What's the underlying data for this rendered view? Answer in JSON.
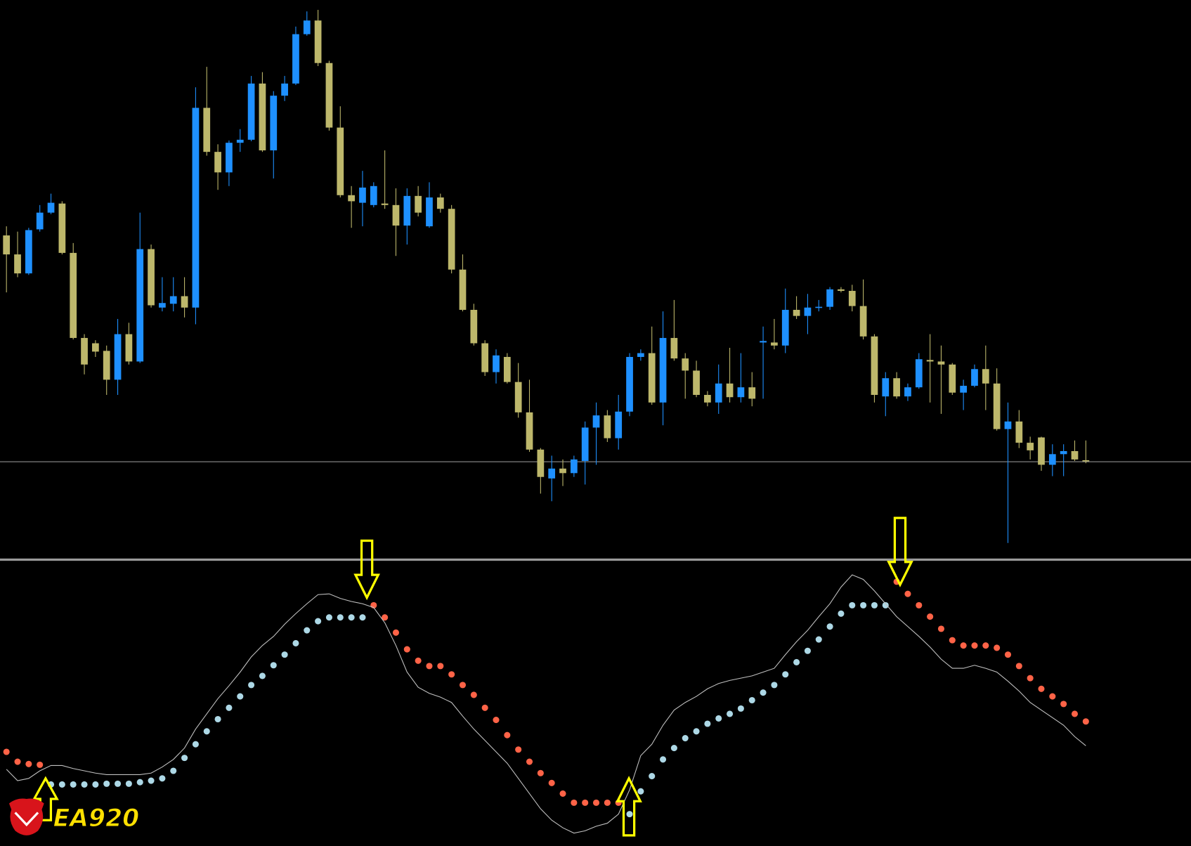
{
  "logo": "EA920",
  "chart_data": [
    {
      "type": "candlestick",
      "up_color": "#1e90ff",
      "down_color": "#bdb76b",
      "ylim": [
        0,
        740
      ],
      "hline": 132,
      "hline_color": "#a0a0a0",
      "open": [
        430,
        405,
        380,
        438,
        460,
        472,
        407,
        295,
        288,
        278,
        240,
        300,
        264,
        412,
        335,
        340,
        350,
        335,
        598,
        540,
        513,
        552,
        556,
        630,
        542,
        614,
        630,
        695,
        713,
        657,
        572,
        483,
        473,
        470,
        472,
        470,
        443,
        482,
        442,
        480,
        465,
        385,
        332,
        288,
        250,
        270,
        237,
        197,
        148,
        110,
        123,
        117,
        133,
        177,
        193,
        163,
        198,
        270,
        275,
        210,
        295,
        268,
        252,
        220,
        210,
        235,
        217,
        230,
        289,
        289,
        285,
        332,
        324,
        335,
        336,
        359,
        357,
        337,
        297,
        218,
        242,
        218,
        230,
        266,
        264,
        260,
        223,
        232,
        254,
        235,
        175,
        185,
        157,
        164,
        128,
        142,
        146,
        134
      ],
      "high": [
        442,
        435,
        440,
        470,
        485,
        475,
        420,
        300,
        292,
        285,
        320,
        315,
        460,
        418,
        375,
        375,
        375,
        625,
        652,
        550,
        555,
        570,
        640,
        645,
        620,
        640,
        705,
        725,
        727,
        660,
        600,
        495,
        515,
        500,
        542,
        492,
        492,
        495,
        500,
        485,
        470,
        405,
        340,
        292,
        280,
        275,
        262,
        240,
        150,
        140,
        135,
        140,
        185,
        210,
        200,
        220,
        275,
        280,
        310,
        330,
        345,
        275,
        265,
        225,
        260,
        282,
        275,
        250,
        310,
        320,
        360,
        350,
        353,
        345,
        362,
        362,
        365,
        372,
        300,
        250,
        250,
        235,
        275,
        300,
        285,
        262,
        240,
        260,
        285,
        255,
        210,
        200,
        165,
        165,
        155,
        155,
        160,
        160
      ],
      "low": [
        355,
        375,
        378,
        435,
        458,
        405,
        293,
        247,
        270,
        220,
        220,
        260,
        262,
        335,
        330,
        330,
        322,
        313,
        535,
        490,
        495,
        540,
        554,
        540,
        505,
        607,
        628,
        693,
        653,
        568,
        480,
        440,
        442,
        467,
        465,
        403,
        418,
        455,
        440,
        460,
        380,
        330,
        285,
        245,
        235,
        235,
        190,
        145,
        90,
        80,
        100,
        112,
        102,
        128,
        158,
        148,
        192,
        265,
        207,
        180,
        265,
        215,
        217,
        205,
        195,
        210,
        210,
        205,
        215,
        280,
        275,
        320,
        300,
        330,
        332,
        355,
        330,
        293,
        210,
        192,
        215,
        212,
        228,
        210,
        195,
        220,
        200,
        230,
        200,
        173,
        25,
        150,
        135,
        120,
        113,
        113,
        133,
        130
      ],
      "close": [
        405,
        380,
        437,
        460,
        473,
        407,
        295,
        260,
        277,
        240,
        300,
        264,
        412,
        338,
        341,
        350,
        335,
        598,
        540,
        513,
        552,
        556,
        630,
        542,
        614,
        630,
        695,
        713,
        657,
        572,
        483,
        475,
        493,
        495,
        470,
        443,
        482,
        460,
        480,
        465,
        385,
        332,
        288,
        250,
        272,
        237,
        197,
        148,
        112,
        123,
        117,
        135,
        177,
        193,
        163,
        198,
        270,
        275,
        210,
        295,
        268,
        252,
        220,
        210,
        235,
        217,
        230,
        215,
        291,
        285,
        332,
        324,
        335,
        336,
        359,
        357,
        337,
        297,
        220,
        242,
        218,
        230,
        267,
        264,
        260,
        223,
        232,
        254,
        235,
        175,
        185,
        157,
        147,
        128,
        142,
        146,
        135,
        133
      ]
    },
    {
      "type": "line",
      "ylim": [
        0,
        374
      ],
      "series": [
        {
          "color": "#add8e6",
          "marker": "dot",
          "values": [
            null,
            null,
            null,
            null,
            81,
            81,
            81,
            81,
            81,
            82,
            82,
            82,
            84,
            86,
            89,
            99,
            116,
            134,
            151,
            167,
            182,
            197,
            212,
            224,
            238,
            252,
            267,
            284,
            296,
            301,
            301,
            301,
            301,
            null,
            null,
            null,
            null,
            null,
            null,
            null,
            null,
            null,
            null,
            null,
            null,
            null,
            null,
            null,
            null,
            null,
            null,
            null,
            null,
            null,
            null,
            null,
            42,
            72,
            92,
            114,
            129,
            142,
            151,
            161,
            168,
            174,
            181,
            192,
            202,
            212,
            226,
            242,
            257,
            272,
            289,
            306,
            317,
            317,
            317,
            317,
            null,
            null,
            null,
            null,
            null,
            null,
            null,
            null,
            null,
            null,
            null,
            null,
            null,
            null,
            null,
            null,
            null,
            null
          ]
        },
        {
          "color": "#ff6347",
          "marker": "dot",
          "values": [
            124,
            111,
            108,
            107,
            null,
            null,
            null,
            null,
            null,
            null,
            null,
            null,
            null,
            null,
            null,
            null,
            null,
            null,
            null,
            null,
            null,
            null,
            null,
            null,
            null,
            null,
            null,
            null,
            null,
            null,
            null,
            null,
            null,
            317,
            301,
            281,
            259,
            244,
            237,
            237,
            226,
            212,
            199,
            182,
            166,
            146,
            127,
            111,
            96,
            83,
            69,
            57,
            57,
            57,
            57,
            57,
            null,
            null,
            null,
            null,
            null,
            null,
            null,
            null,
            null,
            null,
            null,
            null,
            null,
            null,
            null,
            null,
            null,
            null,
            null,
            null,
            null,
            null,
            null,
            null,
            348,
            332,
            317,
            302,
            286,
            271,
            264,
            264,
            264,
            261,
            252,
            237,
            221,
            207,
            197,
            187,
            174,
            164
          ]
        },
        {
          "color": "#c0c0c0",
          "marker": "line",
          "values": [
            101,
            86,
            89,
            99,
            106,
            106,
            102,
            99,
            96,
            94,
            94,
            94,
            94,
            96,
            104,
            114,
            129,
            154,
            174,
            194,
            211,
            229,
            249,
            264,
            276,
            292,
            306,
            319,
            331,
            332,
            326,
            322,
            319,
            314,
            294,
            264,
            229,
            209,
            201,
            196,
            189,
            171,
            154,
            139,
            124,
            109,
            89,
            69,
            49,
            34,
            24,
            17,
            20,
            26,
            30,
            42,
            74,
            119,
            134,
            159,
            179,
            189,
            197,
            207,
            214,
            218,
            221,
            224,
            229,
            234,
            252,
            269,
            284,
            302,
            319,
            341,
            357,
            351,
            336,
            319,
            302,
            289,
            276,
            262,
            246,
            234,
            234,
            238,
            234,
            229,
            217,
            204,
            189,
            179,
            169,
            159,
            144,
            132
          ]
        }
      ]
    }
  ]
}
